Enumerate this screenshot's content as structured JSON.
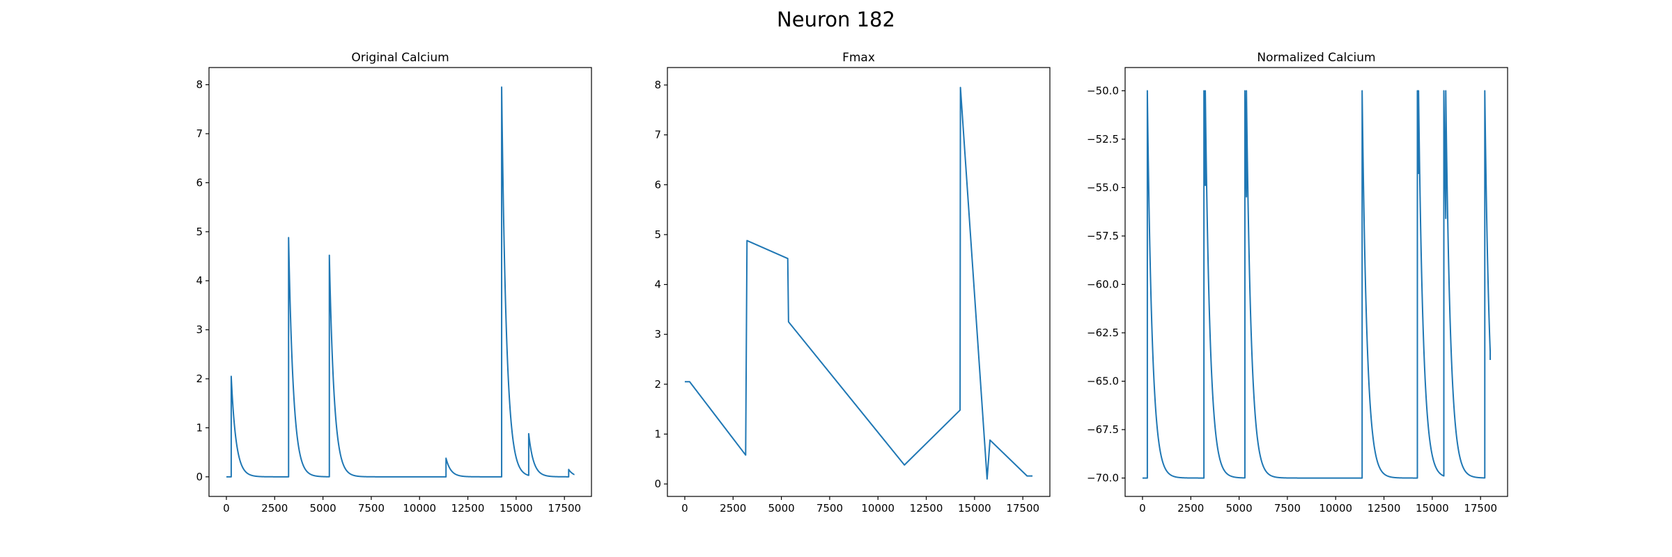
{
  "suptitle": "Neuron 182",
  "line_color": "#1f77b4",
  "chart_data": [
    {
      "type": "line",
      "title": "Original Calcium",
      "xlabel": "",
      "ylabel": "",
      "xlim": [
        -900,
        18900
      ],
      "ylim": [
        -0.4,
        8.35
      ],
      "xticks": [
        0,
        2500,
        5000,
        7500,
        10000,
        12500,
        15000,
        17500
      ],
      "xtick_labels": [
        "0",
        "2500",
        "5000",
        "7500",
        "10000",
        "12500",
        "15000",
        "17500"
      ],
      "yticks": [
        0,
        1,
        2,
        3,
        4,
        5,
        6,
        7,
        8
      ],
      "ytick_labels": [
        "0",
        "1",
        "2",
        "3",
        "4",
        "5",
        "6",
        "7",
        "8"
      ],
      "baseline": 0,
      "start": 0,
      "start_x": 0,
      "end_x": 18000,
      "end_value": 0.05,
      "events": [
        {
          "t": 250,
          "peak": 2.05,
          "tau": 260
        },
        {
          "t": 3220,
          "peak": 4.88,
          "tau": 250
        },
        {
          "t": 5330,
          "peak": 4.52,
          "tau": 250
        },
        {
          "t": 11370,
          "peak": 0.38,
          "tau": 250
        },
        {
          "t": 14250,
          "peak": 7.95,
          "tau": 250
        },
        {
          "t": 15650,
          "peak": 0.88,
          "tau": 250
        },
        {
          "t": 17720,
          "peak": 0.15,
          "tau": 250
        }
      ]
    },
    {
      "type": "line",
      "title": "Fmax",
      "xlabel": "",
      "ylabel": "",
      "xlim": [
        -900,
        18900
      ],
      "ylim": [
        -0.25,
        8.35
      ],
      "xticks": [
        0,
        2500,
        5000,
        7500,
        10000,
        12500,
        15000,
        17500
      ],
      "xtick_labels": [
        "0",
        "2500",
        "5000",
        "7500",
        "10000",
        "12500",
        "15000",
        "17500"
      ],
      "yticks": [
        0,
        1,
        2,
        3,
        4,
        5,
        6,
        7,
        8
      ],
      "ytick_labels": [
        "0",
        "1",
        "2",
        "3",
        "4",
        "5",
        "6",
        "7",
        "8"
      ],
      "x": [
        0,
        250,
        3150,
        3220,
        5330,
        5370,
        11370,
        14250,
        14270,
        15650,
        15800,
        17720,
        18000
      ],
      "y": [
        2.05,
        2.05,
        0.58,
        4.88,
        4.52,
        3.25,
        0.38,
        1.48,
        7.95,
        0.1,
        0.88,
        0.16,
        0.16
      ]
    },
    {
      "type": "line",
      "title": "Normalized Calcium",
      "xlabel": "",
      "ylabel": "",
      "xlim": [
        -900,
        18900
      ],
      "ylim": [
        -70.95,
        -48.8
      ],
      "xticks": [
        0,
        2500,
        5000,
        7500,
        10000,
        12500,
        15000,
        17500
      ],
      "xtick_labels": [
        "0",
        "2500",
        "5000",
        "7500",
        "10000",
        "12500",
        "15000",
        "17500"
      ],
      "yticks": [
        -70,
        -67.5,
        -65,
        -62.5,
        -60,
        -57.5,
        -55,
        -52.5,
        -50
      ],
      "ytick_labels": [
        "−70.0",
        "−67.5",
        "−65.0",
        "−62.5",
        "−60.0",
        "−57.5",
        "−55.0",
        "−52.5",
        "−50.0"
      ],
      "baseline": -70,
      "start": -70,
      "start_x": 0,
      "end_x": 18000,
      "end_value": -63.9,
      "events": [
        {
          "t": 250,
          "peak": -50,
          "tau": 260
        },
        {
          "t": 3180,
          "peak": -50,
          "tau": 250
        },
        {
          "t": 3250,
          "peak": -50,
          "tau": 250
        },
        {
          "t": 5300,
          "peak": -50,
          "tau": 250
        },
        {
          "t": 5380,
          "peak": -50,
          "tau": 250
        },
        {
          "t": 11370,
          "peak": -50,
          "tau": 250
        },
        {
          "t": 14230,
          "peak": -50,
          "tau": 250
        },
        {
          "t": 14290,
          "peak": -50,
          "tau": 250
        },
        {
          "t": 15600,
          "peak": -50,
          "tau": 250
        },
        {
          "t": 15700,
          "peak": -50,
          "tau": 250
        },
        {
          "t": 17720,
          "peak": -50,
          "tau": 250
        }
      ]
    }
  ]
}
